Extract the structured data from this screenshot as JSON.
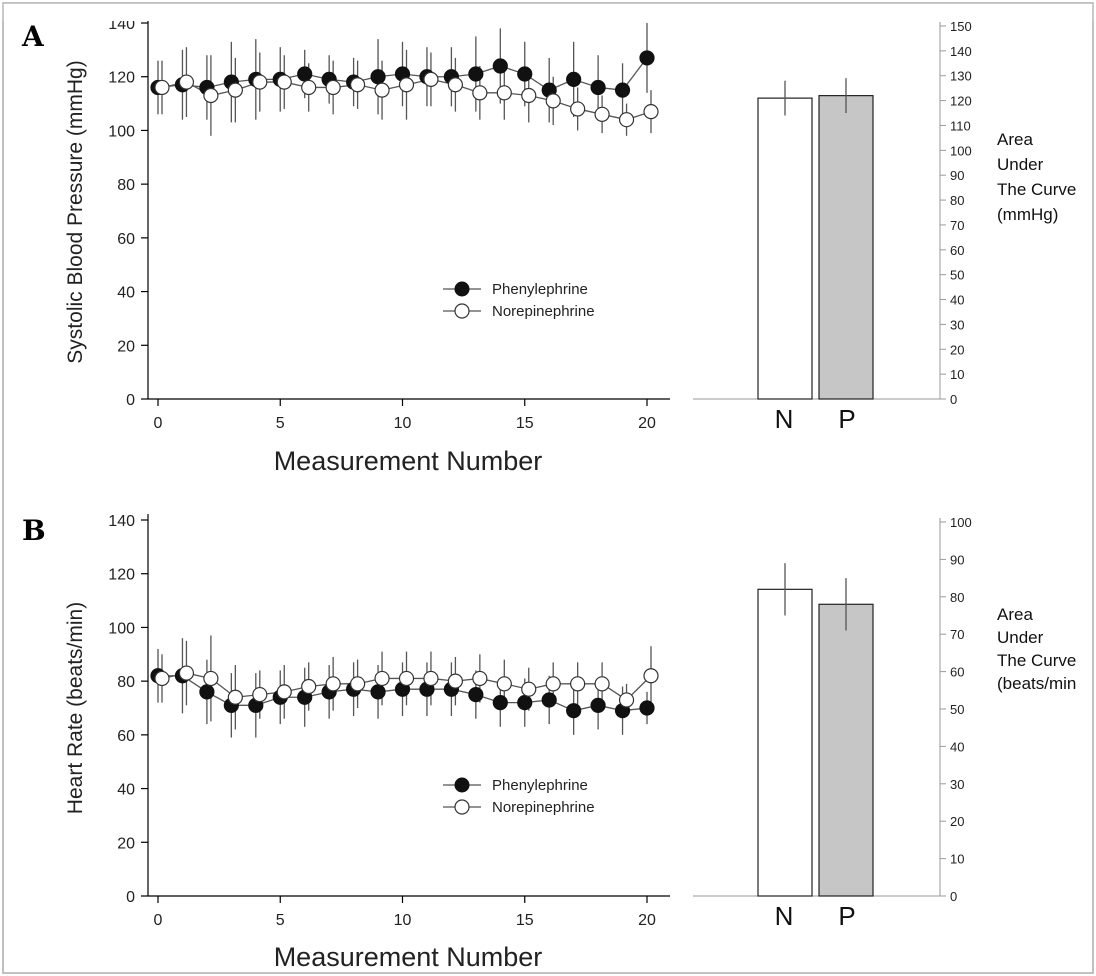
{
  "colors": {
    "phenylephrine_marker": "#111111",
    "norepinephrine_marker": "#ffffff",
    "bar_N": "#ffffff",
    "bar_P": "#c6c6c6",
    "error_bar": "#555555",
    "frame": "#b8b8b8"
  },
  "panels": [
    {
      "letter": "A",
      "ylabel": "Systolic Blood Pressure (mmHg)",
      "xlabel": "Measurement Number",
      "right_label_lines": [
        "Area",
        "Under",
        "The Curve",
        "(mmHg)"
      ],
      "legend": [
        "Phenylephrine",
        "Norepinephrine"
      ],
      "bar_categories": [
        "N",
        "P"
      ]
    },
    {
      "letter": "B",
      "ylabel": "Heart Rate (beats/min)",
      "xlabel": "Measurement Number",
      "right_label_lines": [
        "Area",
        "Under",
        "The Curve",
        "(beats/min"
      ],
      "legend": [
        "Phenylephrine",
        "Norepinephrine"
      ],
      "bar_categories": [
        "N",
        "P"
      ]
    }
  ],
  "chart_data": [
    {
      "type": "line",
      "panel": "A",
      "ylabel": "Systolic Blood Pressure (mmHg",
      "xlabel": "Measurement Number",
      "xlim": [
        0,
        20
      ],
      "ylim": [
        0,
        140
      ],
      "xticks": [
        0,
        5,
        10,
        15,
        20
      ],
      "yticks": [
        0,
        20,
        40,
        60,
        80,
        100,
        120,
        140
      ],
      "legend_position": "center-right",
      "x": [
        0,
        1,
        2,
        3,
        4,
        5,
        6,
        7,
        8,
        9,
        10,
        11,
        12,
        13,
        14,
        15,
        16,
        17,
        18,
        19,
        20
      ],
      "series": [
        {
          "name": "Phenylephrine",
          "marker": "filled-circle",
          "values": [
            116,
            117,
            116,
            118,
            119,
            119,
            121,
            119,
            118,
            120,
            121,
            120,
            120,
            121,
            124,
            121,
            115,
            119,
            116,
            115,
            127
          ],
          "errors": [
            10,
            13,
            12,
            15,
            15,
            12,
            9,
            9,
            9,
            14,
            12,
            11,
            11,
            14,
            14,
            12,
            12,
            14,
            12,
            10,
            13
          ]
        },
        {
          "name": "Norepinephrine",
          "marker": "open-circle",
          "values": [
            116,
            118,
            113,
            115,
            118,
            118,
            116,
            116,
            117,
            115,
            117,
            119,
            117,
            114,
            114,
            113,
            111,
            108,
            106,
            104,
            107
          ],
          "errors": [
            10,
            13,
            15,
            12,
            11,
            10,
            9,
            10,
            9,
            11,
            13,
            10,
            10,
            10,
            10,
            10,
            9,
            8,
            7,
            6,
            8
          ]
        }
      ]
    },
    {
      "type": "bar",
      "panel": "A",
      "categories": [
        "N",
        "P"
      ],
      "values": [
        121,
        122
      ],
      "errors": [
        7,
        7
      ],
      "ylim": [
        0,
        150
      ],
      "yticks": [
        0,
        10,
        20,
        30,
        40,
        50,
        60,
        70,
        80,
        90,
        100,
        110,
        120,
        130,
        140,
        150
      ],
      "ylabel": "Area Under The Curve (mmHg)"
    },
    {
      "type": "line",
      "panel": "B",
      "ylabel": "Heart Rate (beats/min)",
      "xlabel": "Measurement Number",
      "xlim": [
        0,
        20
      ],
      "ylim": [
        0,
        140
      ],
      "xticks": [
        0,
        5,
        10,
        15,
        20
      ],
      "yticks": [
        0,
        20,
        40,
        60,
        80,
        100,
        120,
        140
      ],
      "legend_position": "center-right",
      "x": [
        0,
        1,
        2,
        3,
        4,
        5,
        6,
        7,
        8,
        9,
        10,
        11,
        12,
        13,
        14,
        15,
        16,
        17,
        18,
        19,
        20
      ],
      "series": [
        {
          "name": "Phenylephrine",
          "marker": "filled-circle",
          "values": [
            82,
            82,
            76,
            71,
            71,
            74,
            74,
            76,
            77,
            76,
            77,
            77,
            77,
            75,
            72,
            72,
            73,
            69,
            71,
            69,
            70
          ],
          "errors": [
            10,
            14,
            12,
            12,
            12,
            10,
            11,
            10,
            10,
            10,
            10,
            10,
            10,
            9,
            9,
            9,
            9,
            9,
            9,
            9,
            6
          ]
        },
        {
          "name": "Norepinephrine",
          "marker": "open-circle",
          "values": [
            81,
            83,
            81,
            74,
            75,
            76,
            78,
            79,
            79,
            81,
            81,
            81,
            80,
            81,
            79,
            77,
            79,
            79,
            79,
            73,
            82
          ],
          "errors": [
            9,
            12,
            16,
            12,
            9,
            10,
            9,
            10,
            9,
            10,
            10,
            10,
            9,
            9,
            9,
            8,
            8,
            8,
            8,
            6,
            11
          ]
        }
      ]
    },
    {
      "type": "bar",
      "panel": "B",
      "categories": [
        "N",
        "P"
      ],
      "values": [
        82,
        78
      ],
      "errors": [
        7,
        7
      ],
      "ylim": [
        0,
        100
      ],
      "yticks": [
        0,
        10,
        20,
        30,
        40,
        50,
        60,
        70,
        80,
        90,
        100
      ],
      "ylabel": "Area Under The Curve (beats/min"
    }
  ]
}
